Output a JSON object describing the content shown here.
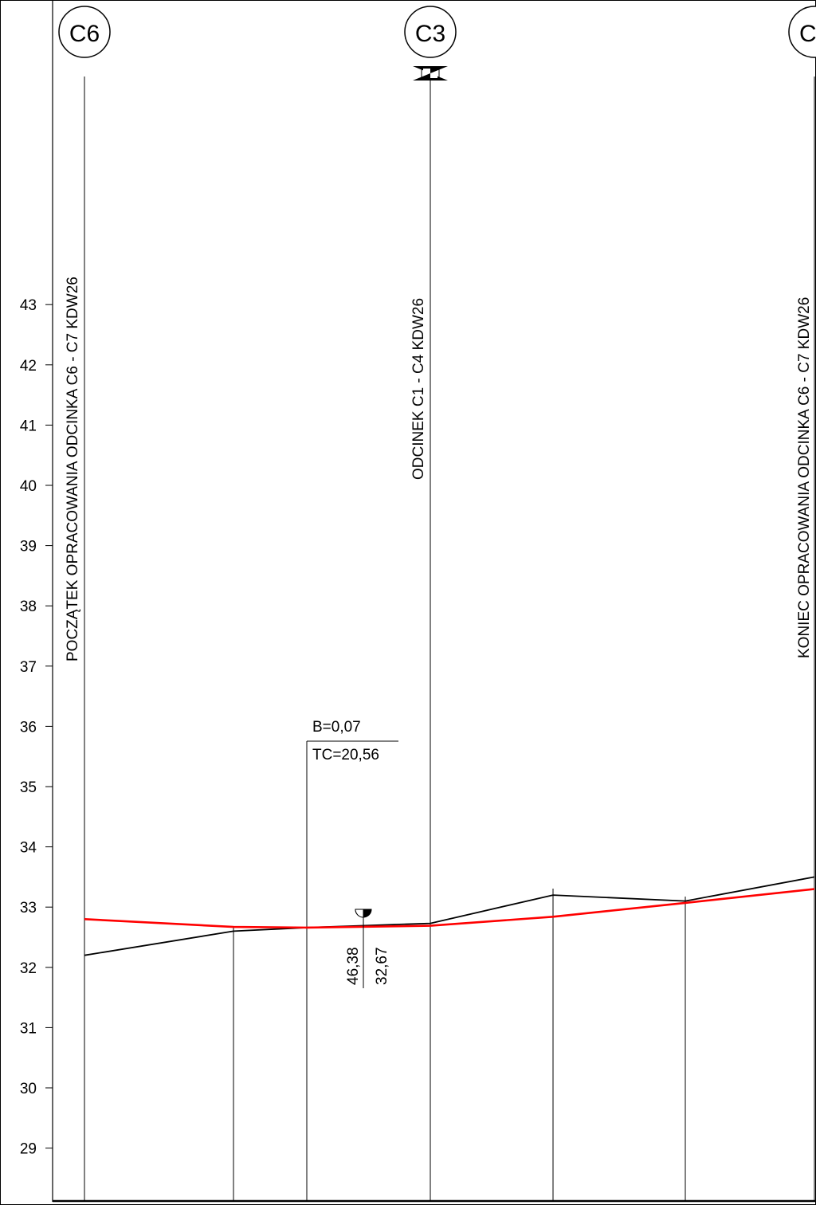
{
  "axis": {
    "unit": "m",
    "tick_labels": [
      "43",
      "42",
      "41",
      "40",
      "39",
      "38",
      "37",
      "36",
      "35",
      "34",
      "33",
      "32",
      "31",
      "30",
      "29"
    ],
    "ticks": [
      43,
      42,
      41,
      40,
      39,
      38,
      37,
      36,
      35,
      34,
      33,
      32,
      31,
      30,
      29
    ]
  },
  "stations": [
    {
      "label": "C6"
    },
    {
      "label": "C3"
    },
    {
      "label": "C"
    }
  ],
  "vertical_labels": {
    "start": "POCZĄTEK  OPRACOWANIA  ODCINKA  C6 - C7  KDW26",
    "middle": "ODCINEK  C1 - C4  KDW26",
    "end": "KONIEC  OPRACOWANIA  ODCINKA  C6 - C7  KDW26"
  },
  "curve_annotation": {
    "b": "B=0,07",
    "tc": "TC=20,56"
  },
  "low_point": {
    "chainage": "46,38",
    "elevation": "32,67"
  },
  "chart_data": {
    "type": "line",
    "ylim": [
      28,
      44
    ],
    "series": [
      {
        "role": "terrain",
        "color": "#000000",
        "values": [
          32.2,
          32.6,
          32.66,
          32.73,
          33.2,
          33.1,
          33.5
        ]
      },
      {
        "role": "design",
        "color": "#ff0000",
        "values": [
          32.8,
          32.67,
          32.66,
          32.69,
          32.84,
          33.07,
          33.3
        ]
      }
    ]
  }
}
